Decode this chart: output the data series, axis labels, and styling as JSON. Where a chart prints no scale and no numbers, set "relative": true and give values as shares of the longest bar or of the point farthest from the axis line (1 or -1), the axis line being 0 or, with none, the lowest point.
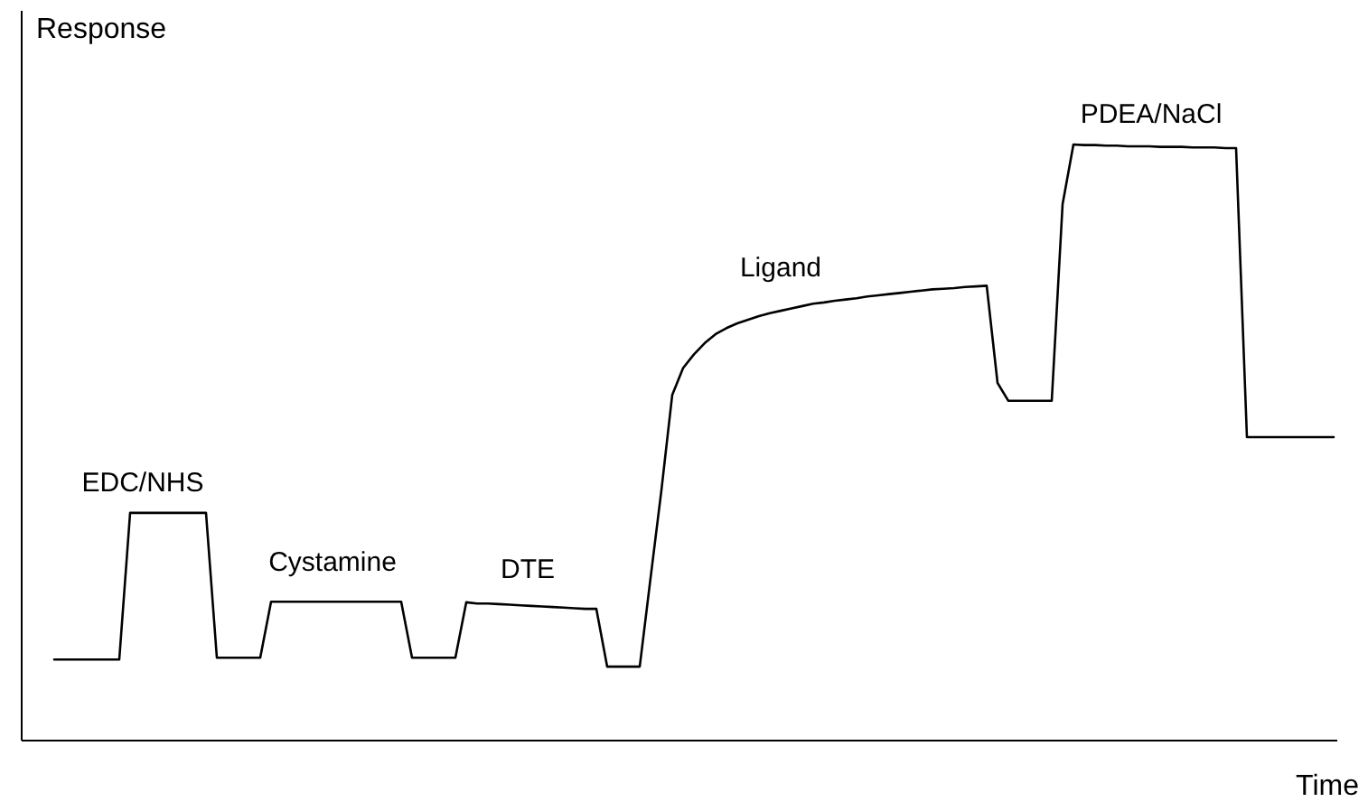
{
  "chart_data": {
    "type": "line",
    "relative": true,
    "xlabel": "Time",
    "ylabel": "Response",
    "categories": [
      null,
      null,
      null,
      null,
      null,
      null,
      null,
      null,
      null,
      null,
      null,
      null,
      null,
      null,
      null,
      null,
      null,
      null,
      null,
      null,
      null,
      null,
      null,
      null,
      null,
      null,
      null,
      null,
      null,
      null,
      null,
      null,
      null,
      null,
      null,
      null,
      null,
      null,
      null,
      null,
      null,
      null,
      null,
      null,
      null,
      null,
      null,
      null,
      null,
      null,
      null,
      null,
      null,
      null,
      null,
      null,
      null,
      null,
      null,
      null,
      null,
      null,
      null,
      null,
      null,
      null,
      null,
      null,
      null,
      null,
      null,
      null,
      null,
      null,
      null,
      null,
      null,
      null,
      null,
      null,
      null,
      null,
      null,
      null,
      null,
      null,
      null,
      null,
      null,
      null,
      null,
      null,
      null,
      null,
      null,
      null,
      null,
      null,
      null,
      null,
      null,
      null,
      null,
      null,
      null,
      null,
      null,
      null,
      null,
      null,
      null,
      null,
      null,
      null,
      null,
      null,
      null,
      null,
      null
    ],
    "series": [
      {
        "color": "#000000",
        "values": [
          0.136,
          0.136,
          0.136,
          0.136,
          0.136,
          0.136,
          0.136,
          0.382,
          0.382,
          0.382,
          0.382,
          0.382,
          0.382,
          0.382,
          0.382,
          0.139,
          0.139,
          0.139,
          0.139,
          0.139,
          0.233,
          0.233,
          0.233,
          0.233,
          0.233,
          0.233,
          0.233,
          0.233,
          0.233,
          0.233,
          0.233,
          0.233,
          0.233,
          0.139,
          0.139,
          0.139,
          0.139,
          0.139,
          0.232,
          0.23,
          0.23,
          0.229,
          0.228,
          0.227,
          0.226,
          0.225,
          0.224,
          0.223,
          0.222,
          0.221,
          0.221,
          0.124,
          0.124,
          0.124,
          0.124,
          0.273,
          0.42,
          0.58,
          0.625,
          0.648,
          0.667,
          0.682,
          0.692,
          0.7,
          0.706,
          0.712,
          0.717,
          0.721,
          0.725,
          0.729,
          0.733,
          0.735,
          0.738,
          0.74,
          0.742,
          0.745,
          0.747,
          0.749,
          0.751,
          0.753,
          0.755,
          0.757,
          0.758,
          0.759,
          0.761,
          0.762,
          0.763,
          0.6,
          0.57,
          0.57,
          0.57,
          0.57,
          0.57,
          0.9,
          1,
          0.999,
          0.999,
          0.998,
          0.998,
          0.997,
          0.997,
          0.997,
          0.996,
          0.996,
          0.996,
          0.995,
          0.995,
          0.995,
          0.994,
          0.994,
          0.509,
          0.509,
          0.509,
          0.509,
          0.509,
          0.509,
          0.509,
          0.509,
          0.509
        ]
      }
    ],
    "annotations": [
      "EDC/NHS",
      "Cystamine",
      "DTE",
      "Ligand",
      "PDEA/NaCl"
    ]
  }
}
